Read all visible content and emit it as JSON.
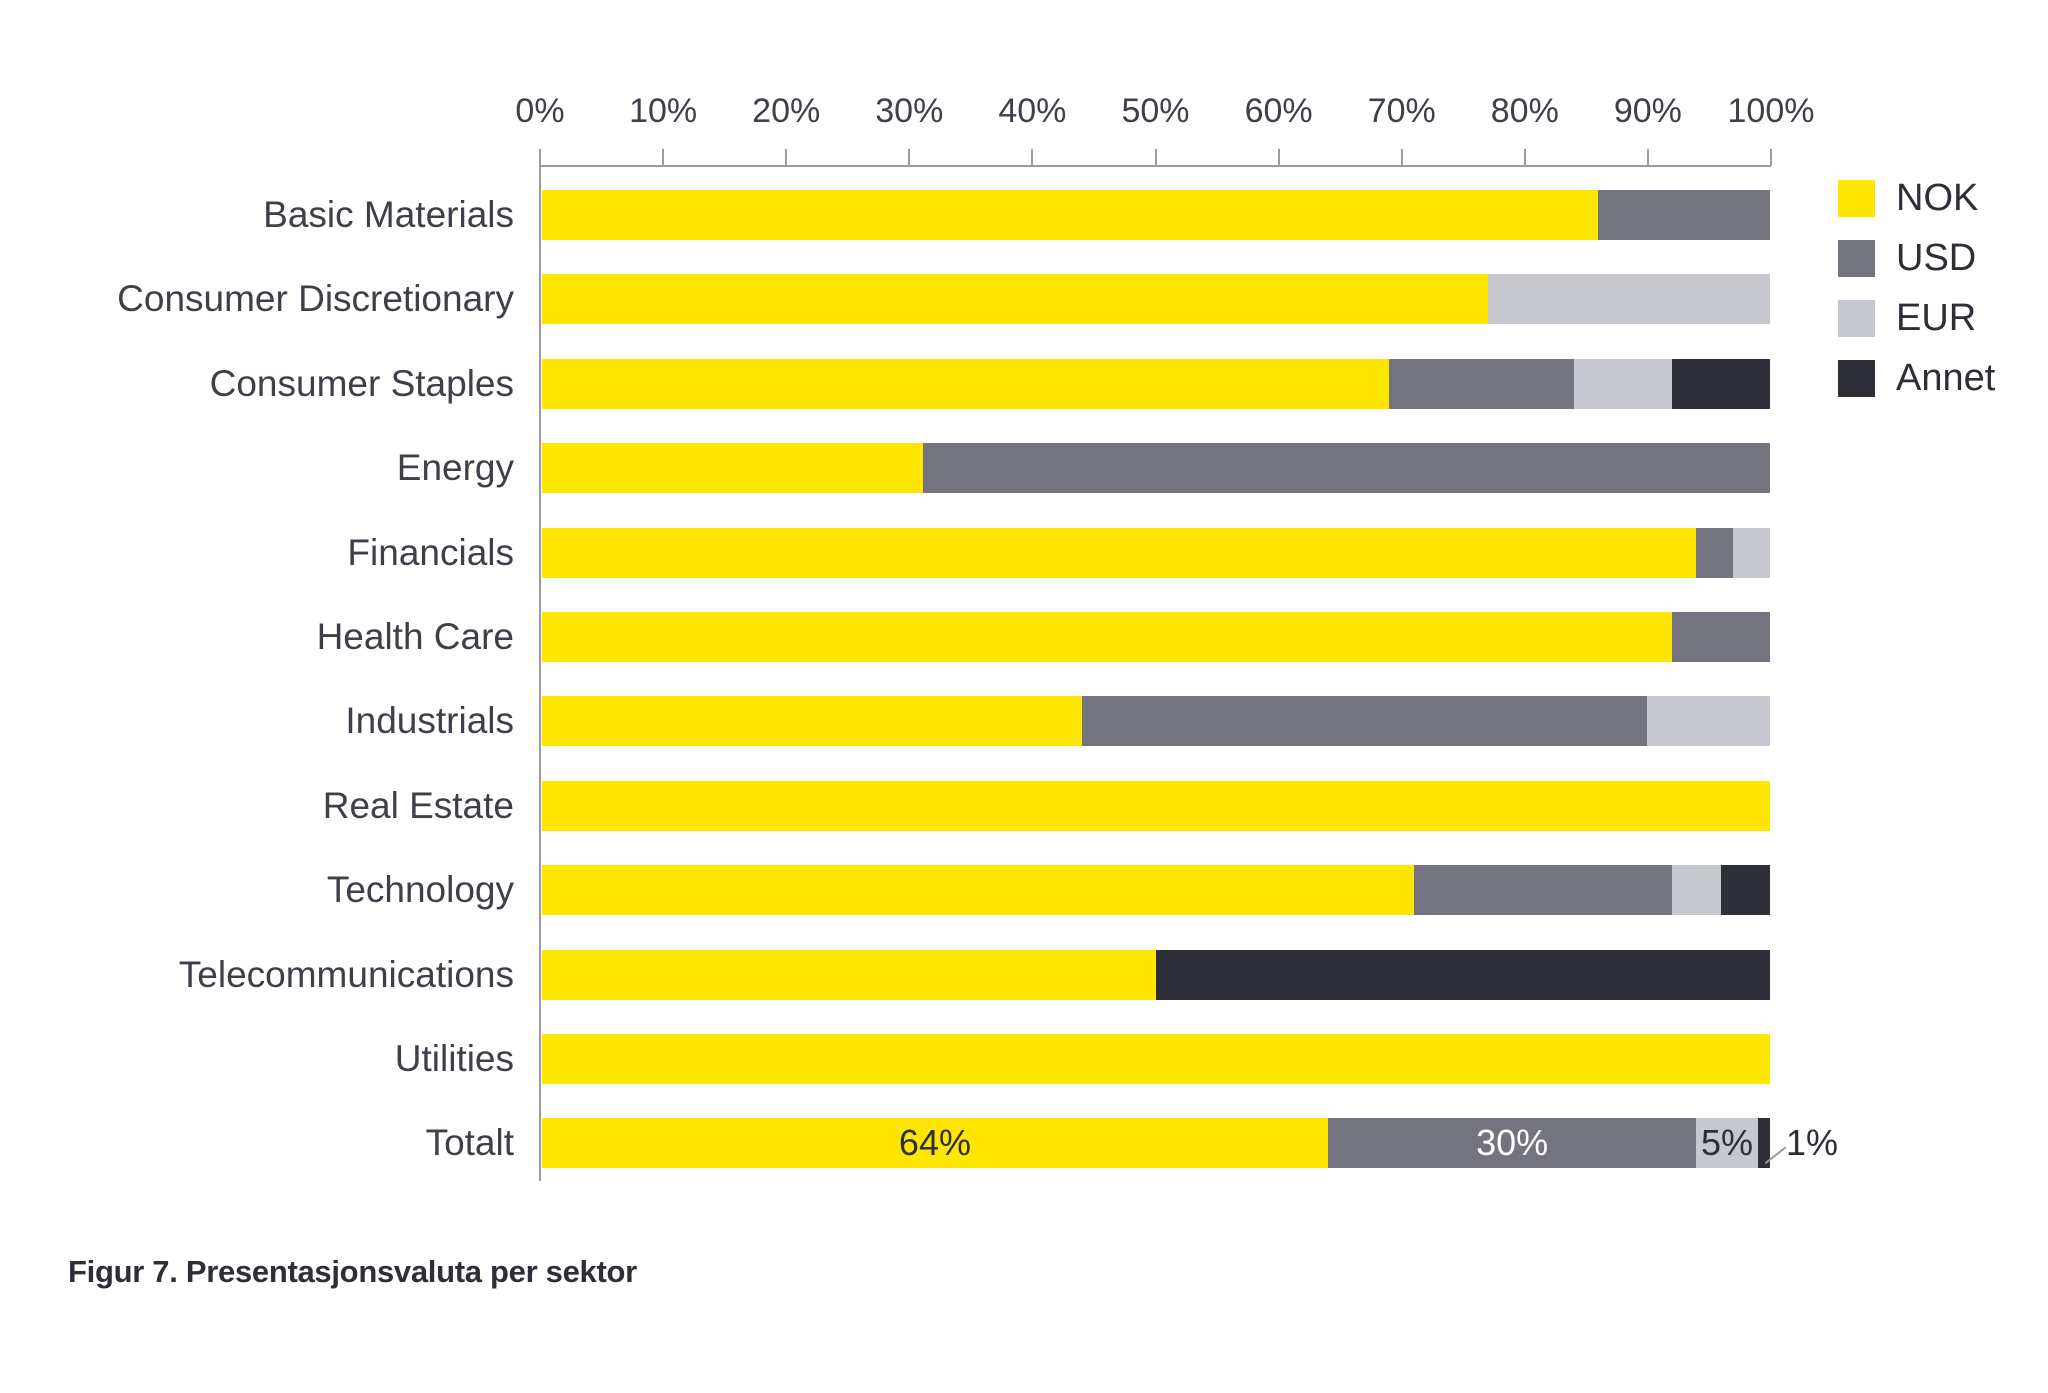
{
  "caption": "Figur 7. Presentasjonsvaluta per sektor",
  "colors": {
    "NOK": "#FFE600",
    "USD": "#747480",
    "EUR": "#C7C7CF",
    "Annet": "#2E2E38",
    "axis_line": "#9B9BA0",
    "label_text": "#3F3F49",
    "caption_text": "#2E2E38",
    "data_label_on_dark": "#FFFFFF"
  },
  "legend": [
    {
      "key": "NOK",
      "label": "NOK"
    },
    {
      "key": "USD",
      "label": "USD"
    },
    {
      "key": "EUR",
      "label": "EUR"
    },
    {
      "key": "Annet",
      "label": "Annet"
    }
  ],
  "axis": {
    "tick_labels": [
      "0%",
      "10%",
      "20%",
      "30%",
      "40%",
      "50%",
      "60%",
      "70%",
      "80%",
      "90%",
      "100%"
    ]
  },
  "chart_data": {
    "type": "bar",
    "stacked": true,
    "orientation": "horizontal",
    "unit": "%",
    "xlim": [
      0,
      100
    ],
    "grid": false,
    "legend_position": "right",
    "title": "Figur 7. Presentasjonsvaluta per sektor",
    "categories": [
      "Basic Materials",
      "Consumer Discretionary",
      "Consumer Staples",
      "Energy",
      "Financials",
      "Health Care",
      "Industrials",
      "Real Estate",
      "Technology",
      "Telecommunications",
      "Utilities",
      "Totalt"
    ],
    "series": [
      {
        "name": "NOK",
        "color": "#FFE600",
        "values": [
          86,
          77,
          69,
          31,
          94,
          92,
          44,
          100,
          71,
          50,
          100,
          64
        ]
      },
      {
        "name": "USD",
        "color": "#747480",
        "values": [
          14,
          0,
          15,
          69,
          3,
          8,
          46,
          0,
          21,
          0,
          0,
          30
        ]
      },
      {
        "name": "EUR",
        "color": "#C7C7CF",
        "values": [
          0,
          23,
          8,
          0,
          3,
          0,
          10,
          0,
          4,
          0,
          0,
          5
        ]
      },
      {
        "name": "Annet",
        "color": "#2E2E38",
        "values": [
          0,
          0,
          8,
          0,
          0,
          0,
          0,
          0,
          4,
          50,
          0,
          1
        ]
      }
    ],
    "data_labels": {
      "category": "Totalt",
      "labels": [
        {
          "series": "NOK",
          "text": "64%",
          "placement": "inside",
          "color": "#2E2E38"
        },
        {
          "series": "USD",
          "text": "30%",
          "placement": "inside",
          "color": "#FFFFFF"
        },
        {
          "series": "EUR",
          "text": "5%",
          "placement": "inside",
          "color": "#2E2E38"
        },
        {
          "series": "Annet",
          "text": "1%",
          "placement": "outside",
          "color": "#2E2E38"
        }
      ]
    }
  }
}
